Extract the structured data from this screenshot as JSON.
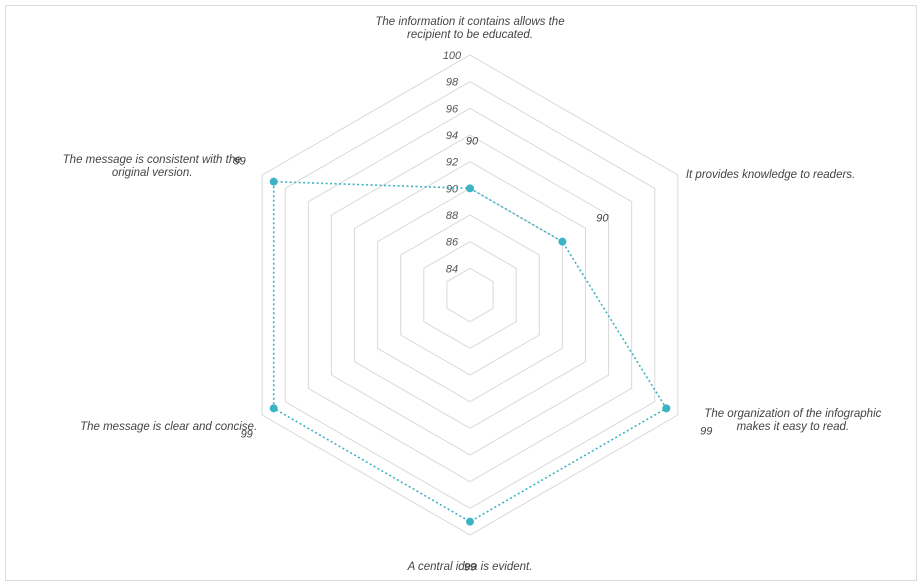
{
  "chart_data": {
    "type": "radar",
    "categories": [
      [
        "The information it contains allows the",
        "recipient to be educated."
      ],
      [
        "It provides knowledge to readers."
      ],
      [
        "The organization of the infographic",
        "makes it easy to read."
      ],
      [
        "A central idea is evident."
      ],
      [
        "The message is clear and concise."
      ],
      [
        "The message is consistent with the",
        "original version."
      ]
    ],
    "values": [
      90,
      90,
      99,
      99,
      99,
      99
    ],
    "r_axis": {
      "min": 82,
      "max": 100,
      "ticks": [
        84,
        86,
        88,
        90,
        92,
        94,
        96,
        98,
        100
      ]
    },
    "grid": true,
    "series_color": "#3bb3c3",
    "grid_color": "#d9d9d9",
    "line_style": "dotted"
  }
}
